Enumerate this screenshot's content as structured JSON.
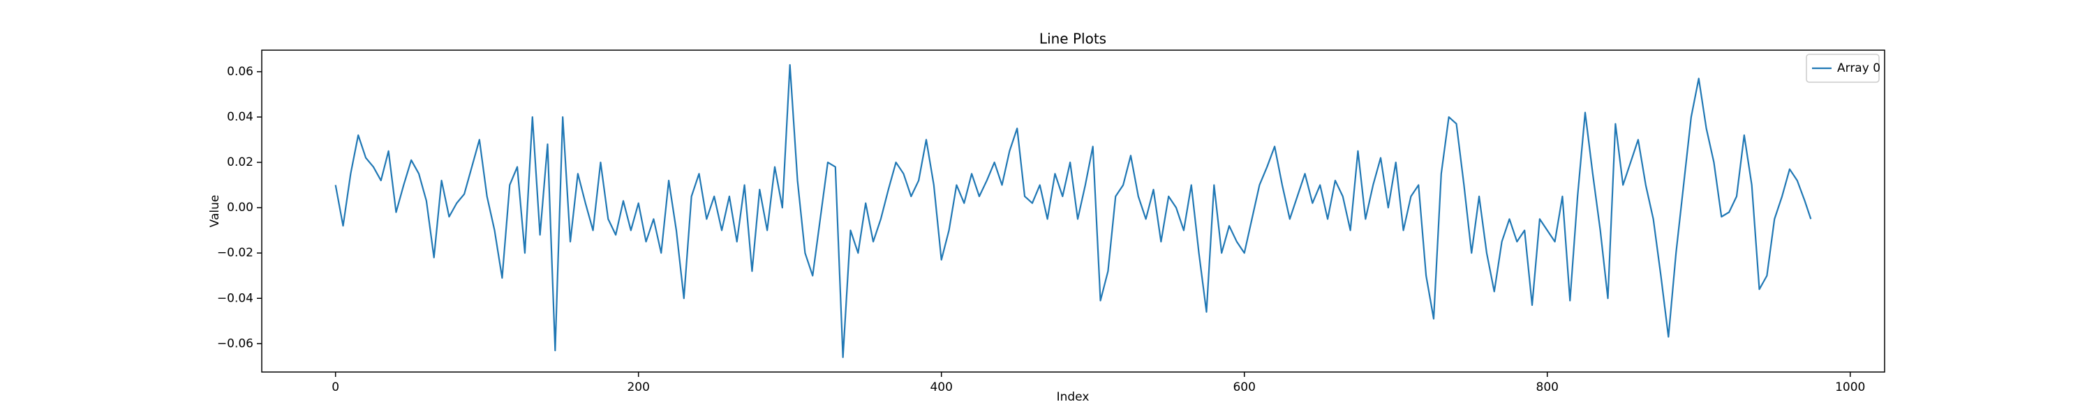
{
  "chart_data": {
    "type": "line",
    "title": "Line Plots",
    "x_label": "Index",
    "y_label": "Value",
    "legend": "upper right",
    "grid": false,
    "xlim": [
      -48.7,
      1022.7
    ],
    "ylim": [
      -0.0725,
      0.0695
    ],
    "xticks": [
      0,
      200,
      400,
      600,
      800,
      1000
    ],
    "yticks": [
      {
        "value": -0.06,
        "label": "−0.06"
      },
      {
        "value": -0.04,
        "label": "−0.04"
      },
      {
        "value": -0.02,
        "label": "−0.02"
      },
      {
        "value": 0,
        "label": "0.00"
      },
      0.02,
      0.04,
      0.06
    ],
    "x": [
      0,
      5,
      10,
      15,
      20,
      25,
      30,
      35,
      40,
      45,
      50,
      55,
      60,
      65,
      70,
      75,
      80,
      85,
      90,
      95,
      100,
      105,
      110,
      115,
      120,
      125,
      130,
      135,
      140,
      145,
      150,
      155,
      160,
      165,
      170,
      175,
      180,
      185,
      190,
      195,
      200,
      205,
      210,
      215,
      220,
      225,
      230,
      235,
      240,
      245,
      250,
      255,
      260,
      265,
      270,
      275,
      280,
      285,
      290,
      295,
      300,
      305,
      310,
      315,
      320,
      325,
      330,
      335,
      340,
      345,
      350,
      355,
      360,
      365,
      370,
      375,
      380,
      385,
      390,
      395,
      400,
      405,
      410,
      415,
      420,
      425,
      430,
      435,
      440,
      445,
      450,
      455,
      460,
      465,
      470,
      475,
      480,
      485,
      490,
      495,
      500,
      505,
      510,
      515,
      520,
      525,
      530,
      535,
      540,
      545,
      550,
      555,
      560,
      565,
      570,
      575,
      580,
      585,
      590,
      595,
      600,
      605,
      610,
      615,
      620,
      625,
      630,
      635,
      640,
      645,
      650,
      655,
      660,
      665,
      670,
      675,
      680,
      685,
      690,
      695,
      700,
      705,
      710,
      715,
      720,
      725,
      730,
      735,
      740,
      745,
      750,
      755,
      760,
      765,
      770,
      775,
      780,
      785,
      790,
      795,
      800,
      805,
      810,
      815,
      820,
      825,
      830,
      835,
      840,
      845,
      850,
      855,
      860,
      865,
      870,
      875,
      880,
      885,
      890,
      895,
      900,
      905,
      910,
      915,
      920,
      925,
      930,
      935,
      940,
      945,
      950,
      955,
      960,
      965,
      970,
      974
    ],
    "series": [
      {
        "name": "Array 0",
        "color": "#1f77b4",
        "values": [
          0.01,
          -0.008,
          0.015,
          0.032,
          0.022,
          0.018,
          0.012,
          0.025,
          -0.002,
          0.01,
          0.021,
          0.015,
          0.003,
          -0.022,
          0.012,
          -0.004,
          0.002,
          0.006,
          0.018,
          0.03,
          0.005,
          -0.01,
          -0.031,
          0.01,
          0.018,
          -0.02,
          0.04,
          -0.012,
          0.028,
          -0.063,
          0.04,
          -0.015,
          0.015,
          0.002,
          -0.01,
          0.02,
          -0.005,
          -0.012,
          0.003,
          -0.01,
          0.002,
          -0.015,
          -0.005,
          -0.02,
          0.012,
          -0.01,
          -0.04,
          0.005,
          0.015,
          -0.005,
          0.005,
          -0.01,
          0.005,
          -0.015,
          0.01,
          -0.028,
          0.008,
          -0.01,
          0.018,
          0.0,
          0.063,
          0.012,
          -0.02,
          -0.03,
          -0.005,
          0.02,
          0.018,
          -0.066,
          -0.01,
          -0.02,
          0.002,
          -0.015,
          -0.005,
          0.008,
          0.02,
          0.015,
          0.005,
          0.012,
          0.03,
          0.01,
          -0.023,
          -0.01,
          0.01,
          0.002,
          0.015,
          0.005,
          0.012,
          0.02,
          0.01,
          0.025,
          0.035,
          0.005,
          0.002,
          0.01,
          -0.005,
          0.015,
          0.005,
          0.02,
          -0.005,
          0.01,
          0.027,
          -0.041,
          -0.028,
          0.005,
          0.01,
          0.023,
          0.005,
          -0.005,
          0.008,
          -0.015,
          0.005,
          0.0,
          -0.01,
          0.01,
          -0.02,
          -0.046,
          0.01,
          -0.02,
          -0.008,
          -0.015,
          -0.02,
          -0.005,
          0.01,
          0.018,
          0.027,
          0.01,
          -0.005,
          0.005,
          0.015,
          0.002,
          0.01,
          -0.005,
          0.012,
          0.005,
          -0.01,
          0.025,
          -0.005,
          0.01,
          0.022,
          0.0,
          0.02,
          -0.01,
          0.005,
          0.01,
          -0.03,
          -0.049,
          0.015,
          0.04,
          0.037,
          0.01,
          -0.02,
          0.005,
          -0.02,
          -0.037,
          -0.015,
          -0.005,
          -0.015,
          -0.01,
          -0.043,
          -0.005,
          -0.01,
          -0.015,
          0.005,
          -0.041,
          0.005,
          0.042,
          0.015,
          -0.01,
          -0.04,
          0.037,
          0.01,
          0.02,
          0.03,
          0.01,
          -0.005,
          -0.03,
          -0.057,
          -0.02,
          0.01,
          0.04,
          0.057,
          0.035,
          0.02,
          -0.004,
          -0.002,
          0.005,
          0.032,
          0.01,
          -0.036,
          -0.03,
          -0.005,
          0.005,
          0.017,
          0.012,
          0.003,
          -0.005
        ]
      }
    ]
  }
}
